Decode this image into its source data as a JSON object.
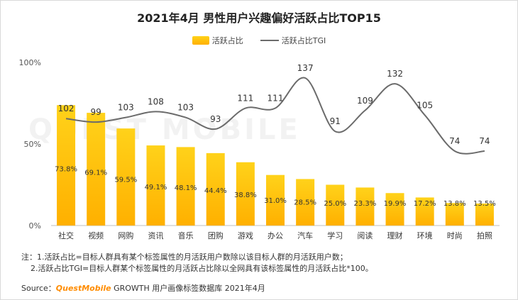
{
  "title": "2021年4月 男性用户兴趣偏好活跃占比TOP15",
  "legend": {
    "bar_label": "活跃占比",
    "line_label": "活跃占比TGI"
  },
  "watermark": "QUEST MOBILE",
  "notes": {
    "line1": "注：1.活跃占比=目标人群具有某个标签属性的月活跃用户数除以该目标人群的月活跃用户数；",
    "line2": "2.活跃占比TGI=目标人群某个标签属性的月活跃占比除以全网具有该标签属性的月活跃占比*100。"
  },
  "source": {
    "prefix": "Source：",
    "brand": "QuestMobile",
    "suffix": " GROWTH 用户画像标签数据库 2021年4月"
  },
  "colors": {
    "bar_top": "#ffd21a",
    "bar_bottom": "#ffb000",
    "line": "#6b6b6b"
  },
  "chart_data": {
    "type": "bar",
    "categories": [
      "社交",
      "视频",
      "网购",
      "资讯",
      "音乐",
      "团购",
      "游戏",
      "办公",
      "汽车",
      "学习",
      "阅读",
      "理财",
      "环境",
      "时尚",
      "拍照"
    ],
    "series": [
      {
        "name": "活跃占比",
        "type": "bar",
        "values": [
          73.8,
          69.1,
          59.5,
          49.1,
          48.1,
          44.4,
          38.8,
          31.0,
          28.5,
          25.0,
          23.3,
          19.9,
          17.2,
          13.8,
          13.5
        ],
        "labels": [
          "73.8%",
          "69.1%",
          "59.5%",
          "49.1%",
          "48.1%",
          "44.4%",
          "38.8%",
          "31.0%",
          "28.5%",
          "25.0%",
          "23.3%",
          "19.9%",
          "17.2%",
          "13.8%",
          "13.5%"
        ]
      },
      {
        "name": "活跃占比TGI",
        "type": "line",
        "values": [
          102,
          99,
          103,
          108,
          103,
          93,
          111,
          111,
          137,
          91,
          109,
          132,
          105,
          74,
          74
        ]
      }
    ],
    "yticks": [
      "0%",
      "50%",
      "100%"
    ],
    "ylim": [
      0,
      100
    ],
    "grid": false,
    "legend_position": "top-center"
  }
}
